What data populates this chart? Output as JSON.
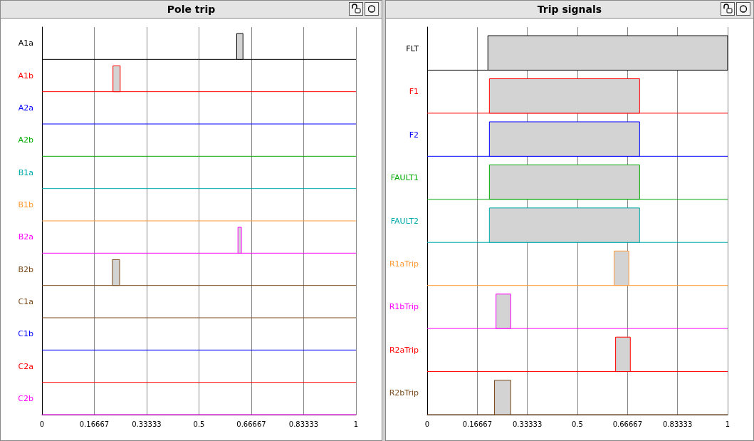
{
  "chart_data": [
    {
      "type": "bar",
      "orientation": "horizontal",
      "title": "Pole trip",
      "categories": [
        "A1a",
        "A1b",
        "A2a",
        "A2b",
        "B1a",
        "B1b",
        "B2a",
        "B2b",
        "C1a",
        "C1b",
        "C2a",
        "C2b"
      ],
      "colors": [
        "#000000",
        "#ff0000",
        "#0000ff",
        "#00aa00",
        "#00aaaa",
        "#ff9933",
        "#ff00ff",
        "#7a4a1a",
        "#7a4a1a",
        "#0000ff",
        "#ff0000",
        "#ff00ff"
      ],
      "color": "#d3d3d3",
      "base": [
        0.62,
        0.226,
        null,
        null,
        null,
        null,
        0.624,
        0.224,
        null,
        null,
        null,
        null
      ],
      "values": [
        0.02,
        0.023,
        null,
        null,
        null,
        null,
        0.011,
        0.023,
        null,
        null,
        null,
        null
      ],
      "ref_lines": [
        {
          "axis": "y",
          "value": "A1a",
          "color": "#000000"
        },
        {
          "axis": "y",
          "value": "A1b",
          "color": "#ff0000"
        },
        {
          "axis": "y",
          "value": "A2a",
          "color": "#0000ff"
        },
        {
          "axis": "y",
          "value": "A2b",
          "color": "#00aa00"
        },
        {
          "axis": "y",
          "value": "B1a",
          "color": "#00aaaa"
        },
        {
          "axis": "y",
          "value": "B1b",
          "color": "#ff9933"
        },
        {
          "axis": "y",
          "value": "B2a",
          "color": "#ff00ff"
        },
        {
          "axis": "y",
          "value": "B2b",
          "color": "#7a4a1a"
        },
        {
          "axis": "y",
          "value": "C1a",
          "color": "#7a4a1a"
        },
        {
          "axis": "y",
          "value": "C1b",
          "color": "#0000ff"
        },
        {
          "axis": "y",
          "value": "C2a",
          "color": "#ff0000"
        },
        {
          "axis": "y",
          "value": "C2b",
          "color": "#ff00ff"
        }
      ],
      "xlim": [
        0,
        1
      ],
      "xticks": [
        0,
        0.16667,
        0.33333,
        0.5,
        0.66667,
        0.83333,
        1
      ],
      "grid": "x"
    },
    {
      "type": "bar",
      "orientation": "horizontal",
      "title": "Trip signals",
      "categories": [
        "FLT",
        "F1",
        "F2",
        "FAULT1",
        "FAULT2",
        "R1aTrip",
        "R1bTrip",
        "R2aTrip",
        "R2bTrip"
      ],
      "colors": [
        "#000000",
        "#ff0000",
        "#0000ff",
        "#00aa00",
        "#00aaaa",
        "#ff9933",
        "#ff00ff",
        "#ff0000",
        "#7a4a1a"
      ],
      "color": "#d3d3d3",
      "base": [
        0.202,
        0.207,
        0.207,
        0.207,
        0.207,
        0.622,
        0.229,
        0.627,
        0.224
      ],
      "values": [
        0.798,
        0.5,
        0.5,
        0.5,
        0.5,
        0.049,
        0.049,
        0.049,
        0.054
      ],
      "ref_lines": [
        {
          "axis": "y",
          "value": "FLT",
          "color": "#000000"
        },
        {
          "axis": "y",
          "value": "F1",
          "color": "#ff0000"
        },
        {
          "axis": "y",
          "value": "F2",
          "color": "#0000ff"
        },
        {
          "axis": "y",
          "value": "FAULT1",
          "color": "#00aa00"
        },
        {
          "axis": "y",
          "value": "FAULT2",
          "color": "#00aaaa"
        },
        {
          "axis": "y",
          "value": "R1aTrip",
          "color": "#ff9933"
        },
        {
          "axis": "y",
          "value": "R1bTrip",
          "color": "#ff00ff"
        },
        {
          "axis": "y",
          "value": "R2aTrip",
          "color": "#ff0000"
        },
        {
          "axis": "y",
          "value": "R2bTrip",
          "color": "#7a4a1a"
        }
      ],
      "xlim": [
        0,
        1
      ],
      "xticks": [
        0,
        0.16667,
        0.33333,
        0.5,
        0.66667,
        0.83333,
        1
      ],
      "grid": "x"
    }
  ]
}
